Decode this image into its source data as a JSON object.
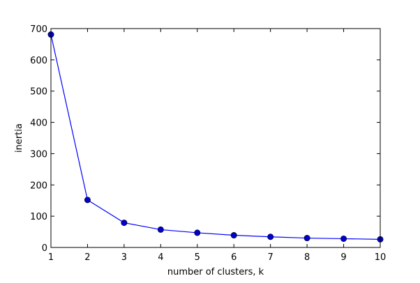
{
  "chart_data": {
    "type": "line",
    "title": "",
    "xlabel": "number of clusters, k",
    "ylabel": "inertia",
    "x": [
      1,
      2,
      3,
      4,
      5,
      6,
      7,
      8,
      9,
      10
    ],
    "series": [
      {
        "values": [
          681,
          152,
          79,
          57,
          47,
          39,
          34,
          30,
          28,
          26
        ],
        "color": "#0000ff",
        "marker_color": "#0000cc"
      }
    ],
    "xlim": [
      1,
      10
    ],
    "ylim": [
      0,
      700
    ],
    "xticks": [
      1,
      2,
      3,
      4,
      5,
      6,
      7,
      8,
      9,
      10
    ],
    "yticks": [
      0,
      100,
      200,
      300,
      400,
      500,
      600,
      700
    ],
    "grid": false,
    "legend": "none"
  }
}
